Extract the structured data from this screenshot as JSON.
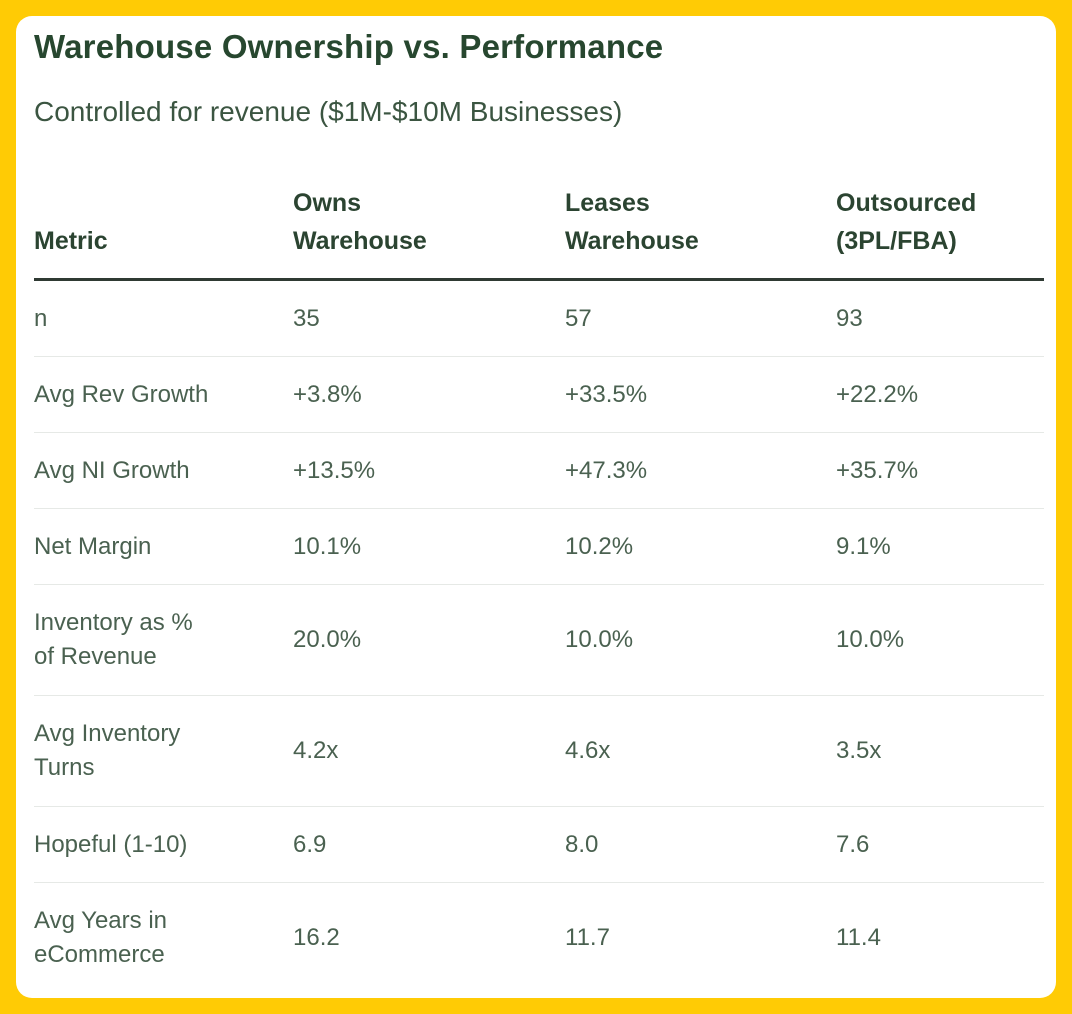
{
  "title": "Warehouse Ownership vs. Performance",
  "subtitle": "Controlled for revenue ($1M-$10M Businesses)",
  "table": {
    "headers": [
      [
        "Metric"
      ],
      [
        "Owns",
        "Warehouse"
      ],
      [
        "Leases",
        "Warehouse"
      ],
      [
        "Outsourced",
        "(3PL/FBA)"
      ]
    ],
    "rows": [
      {
        "metric": [
          "n"
        ],
        "values": [
          "35",
          "57",
          "93"
        ]
      },
      {
        "metric": [
          "Avg Rev Growth"
        ],
        "values": [
          "+3.8%",
          "+33.5%",
          "+22.2%"
        ]
      },
      {
        "metric": [
          "Avg NI Growth"
        ],
        "values": [
          "+13.5%",
          "+47.3%",
          "+35.7%"
        ]
      },
      {
        "metric": [
          "Net Margin"
        ],
        "values": [
          "10.1%",
          "10.2%",
          "9.1%"
        ]
      },
      {
        "metric": [
          "Inventory as %",
          "of Revenue"
        ],
        "values": [
          "20.0%",
          "10.0%",
          "10.0%"
        ]
      },
      {
        "metric": [
          "Avg Inventory",
          "Turns"
        ],
        "values": [
          "4.2x",
          "4.6x",
          "3.5x"
        ]
      },
      {
        "metric": [
          "Hopeful (1-10)"
        ],
        "values": [
          "6.9",
          "8.0",
          "7.6"
        ]
      },
      {
        "metric": [
          "Avg Years in",
          "eCommerce"
        ],
        "values": [
          "16.2",
          "11.7",
          "11.4"
        ]
      }
    ]
  },
  "colors": {
    "background": "#FFCB05",
    "title": "#27472f",
    "text": "#4a6150"
  }
}
